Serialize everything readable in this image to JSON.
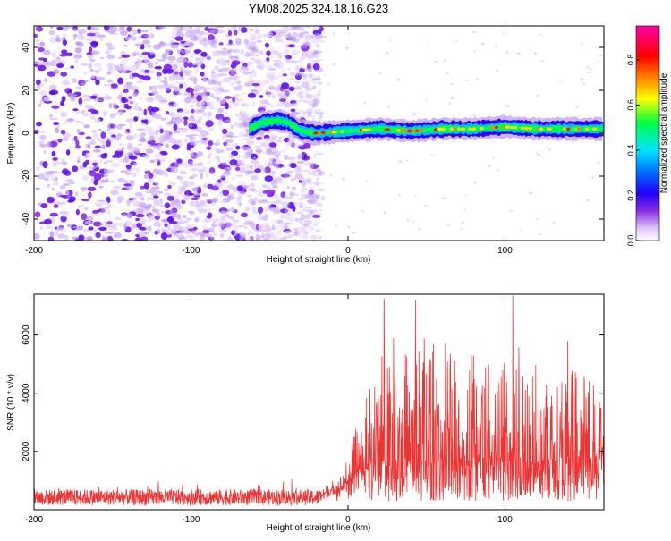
{
  "title": "YM08.2025.324.18.16.G23",
  "chart_data": [
    {
      "type": "heatmap",
      "xlabel": "Height of straight line (km)",
      "ylabel": "Frequency (Hz)",
      "xlim": [
        -200,
        163
      ],
      "ylim": [
        -50,
        50
      ],
      "xticks": [
        -200,
        -100,
        0,
        100
      ],
      "yticks": [
        -40,
        -20,
        0,
        20,
        40
      ],
      "noise_region_x": [
        -200,
        -17
      ],
      "signal_track": {
        "x": [
          -63,
          -55,
          -45,
          -38,
          -30,
          -20,
          0,
          20,
          40,
          60,
          80,
          100,
          120,
          140,
          163
        ],
        "frequency": [
          2,
          5,
          6,
          5,
          1,
          0,
          1,
          2,
          1,
          2,
          2,
          3,
          2,
          2,
          2
        ]
      },
      "colorbar": {
        "label": "Normalized spectral amplitude",
        "range": [
          0.0,
          0.95
        ],
        "ticks": [
          0.0,
          0.2,
          0.4,
          0.6,
          0.8
        ],
        "colors": [
          "#ffffff",
          "#c9a6f5",
          "#8a2be2",
          "#2200ff",
          "#0060ff",
          "#00e5ff",
          "#00ff40",
          "#ffff00",
          "#ff8000",
          "#ff0000",
          "#ff00aa"
        ]
      }
    },
    {
      "type": "line",
      "xlabel": "Height of straight line (km)",
      "ylabel": "SNR (10 * v/v)",
      "xlim": [
        -200,
        163
      ],
      "ylim": [
        0,
        7400
      ],
      "xticks": [
        -200,
        -100,
        0,
        100
      ],
      "yticks": [
        2000,
        4000,
        6000
      ],
      "color": "#ee3333",
      "baseline_x": [
        -200,
        -17
      ],
      "baseline_level": [
        300,
        700
      ],
      "envelope": {
        "x": [
          -17,
          -5,
          0,
          5,
          10,
          15,
          20,
          25,
          30,
          40,
          50,
          60,
          70,
          80,
          90,
          100,
          105,
          110,
          120,
          130,
          140,
          150,
          155,
          160,
          163
        ],
        "low": [
          400,
          600,
          900,
          1100,
          1300,
          1400,
          1400,
          1500,
          1500,
          1500,
          1500,
          1500,
          1500,
          1500,
          1500,
          1500,
          1500,
          1500,
          1500,
          1500,
          1500,
          1600,
          1700,
          1800,
          1800
        ],
        "high": [
          900,
          1200,
          1800,
          2800,
          3600,
          4400,
          5000,
          6500,
          5200,
          5600,
          6200,
          5400,
          5600,
          5800,
          5000,
          5800,
          7300,
          5800,
          5000,
          5400,
          5000,
          4800,
          4300,
          4200,
          4000
        ]
      },
      "peaks": [
        {
          "x": 23,
          "y": 7250
        },
        {
          "x": 29,
          "y": 5900
        },
        {
          "x": 43,
          "y": 7200
        },
        {
          "x": 62,
          "y": 5700
        },
        {
          "x": 80,
          "y": 5300
        },
        {
          "x": 105,
          "y": 7350
        },
        {
          "x": 140,
          "y": 5800
        }
      ]
    }
  ]
}
